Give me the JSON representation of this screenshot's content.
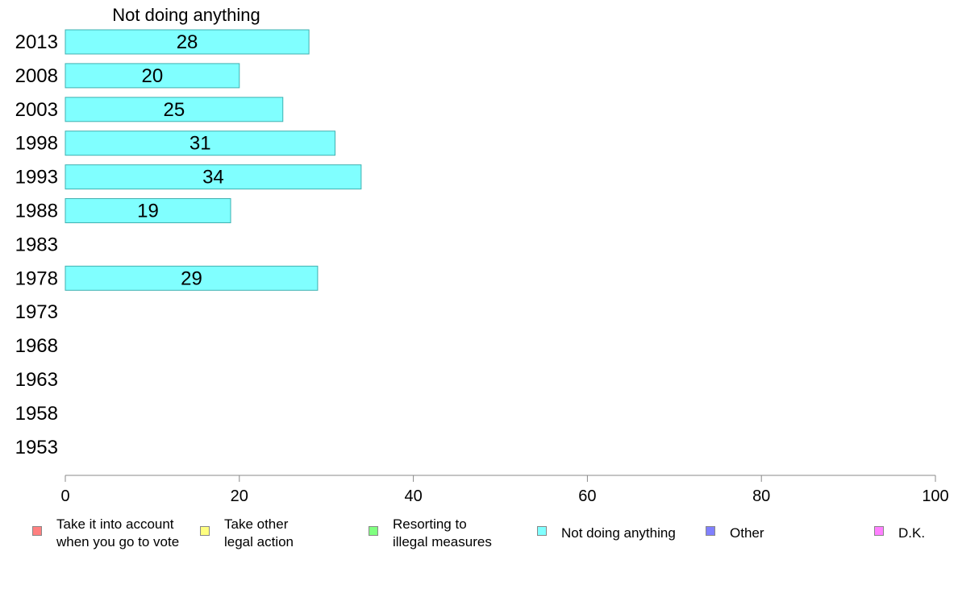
{
  "chart_data": {
    "type": "bar",
    "orientation": "horizontal",
    "title": "Not doing anything",
    "categories": [
      "2013",
      "2008",
      "2003",
      "1998",
      "1993",
      "1988",
      "1983",
      "1978",
      "1973",
      "1968",
      "1963",
      "1958",
      "1953"
    ],
    "values": [
      28,
      20,
      25,
      31,
      34,
      19,
      null,
      29,
      null,
      null,
      null,
      null,
      null
    ],
    "data_labels": [
      "28",
      "20",
      "25",
      "31",
      "34",
      "19",
      "",
      "29",
      "",
      "",
      "",
      "",
      ""
    ],
    "xlim": [
      0,
      100
    ],
    "x_ticks": [
      "0",
      "20",
      "40",
      "60",
      "80",
      "100"
    ],
    "bar_color": "#80ffff",
    "bar_edge_color": "#40b0b0",
    "grid": false,
    "legend_position": "bottom",
    "legend": [
      {
        "label": "Take it into account\nwhen you go to vote",
        "color": "#ff8080"
      },
      {
        "label": "Take other\nlegal action",
        "color": "#ffff80"
      },
      {
        "label": "Resorting to\nillegal measures",
        "color": "#80ff80"
      },
      {
        "label": "Not doing anything",
        "color": "#80ffff"
      },
      {
        "label": "Other",
        "color": "#8080ff"
      },
      {
        "label": "D.K.",
        "color": "#ff80ff"
      }
    ]
  }
}
